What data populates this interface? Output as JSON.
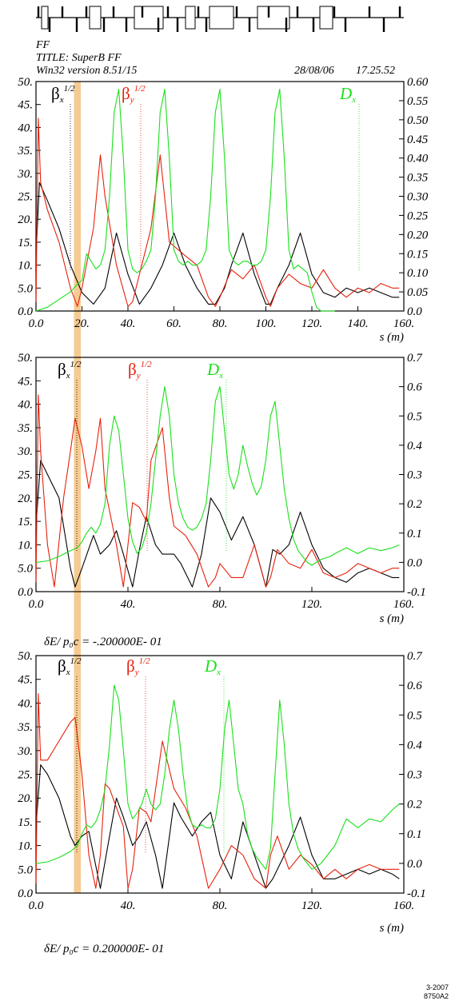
{
  "header": {
    "line1": "FF",
    "line2": "TITLE: SuperB FF",
    "line3": "Win32 version 8.51/15",
    "date": "28/08/06",
    "time": "17.25.52"
  },
  "footer": {
    "code1": "3-2007",
    "code2": "8750A2"
  },
  "colors": {
    "betax": "#000000",
    "betay": "#e8200c",
    "dx": "#19e01a",
    "highlight": "#f5c27f"
  },
  "highlight_band": {
    "s_start": 16.5,
    "s_end": 19.5
  },
  "chart_data": [
    {
      "type": "line",
      "xlabel": "s (m)",
      "xlim": [
        0,
        160
      ],
      "x_ticks": [
        "0.0",
        "20.",
        "40.",
        "60.",
        "80.",
        "100.",
        "120.",
        "140.",
        "160."
      ],
      "ylim_left": [
        0,
        50
      ],
      "y_ticks_left": [
        "0.0",
        "5.0",
        "10.",
        "15.",
        "20.",
        "25.",
        "30.",
        "35.",
        "40.",
        "45.",
        "50."
      ],
      "ylim_right": [
        0,
        0.6
      ],
      "y_ticks_right": [
        "0.0",
        "0.05",
        "0.10",
        "0.15",
        "0.20",
        "0.25",
        "0.30",
        "0.35",
        "0.40",
        "0.45",
        "0.50",
        "0.55",
        "0.60"
      ],
      "delta_label": "",
      "legend": [
        {
          "sym": "β",
          "sub": "x",
          "sup": "1/2",
          "color": "#000000"
        },
        {
          "sym": "β",
          "sub": "y",
          "sup": "1/2",
          "color": "#e8200c"
        },
        {
          "sym": "D",
          "sub": "x",
          "sup": "",
          "color": "#19e01a"
        }
      ],
      "series": [
        {
          "axis": "left",
          "color": "#000000",
          "x": [
            0,
            1.5,
            5,
            10,
            15,
            20,
            25,
            30,
            35,
            40,
            45,
            50,
            55,
            60,
            65,
            70,
            75,
            78,
            82,
            85,
            90,
            95,
            100,
            102,
            105,
            110,
            115,
            120,
            125,
            130,
            135,
            140,
            145,
            150,
            155,
            158
          ],
          "y": [
            12,
            28,
            24,
            18,
            10,
            4,
            1.5,
            5,
            17,
            8,
            1.5,
            5,
            10,
            17,
            10,
            5,
            1.5,
            1.5,
            5,
            10,
            17,
            8,
            1.5,
            1.5,
            5,
            10,
            17,
            8,
            4,
            3,
            5,
            4,
            5,
            4,
            3,
            3
          ]
        },
        {
          "axis": "left",
          "color": "#e8200c",
          "x": [
            0,
            1,
            2,
            5,
            10,
            15,
            18,
            20,
            25,
            28,
            30,
            35,
            40,
            42,
            45,
            50,
            54,
            58,
            65,
            70,
            75,
            78,
            80,
            85,
            90,
            95,
            100,
            102,
            105,
            110,
            115,
            120,
            125,
            130,
            135,
            140,
            145,
            150,
            155,
            158
          ],
          "y": [
            2,
            42,
            28,
            22,
            15,
            5,
            1,
            5,
            18,
            34,
            25,
            10,
            1,
            2,
            8,
            18,
            34,
            15,
            12,
            10,
            3,
            1,
            3,
            9,
            7,
            10,
            3,
            1,
            5,
            8,
            6,
            5,
            9,
            5,
            3,
            5,
            4,
            6,
            5,
            5
          ]
        },
        {
          "axis": "right",
          "color": "#19e01a",
          "x": [
            0,
            5,
            10,
            15,
            18,
            20,
            22,
            24,
            26,
            28,
            30,
            32,
            34,
            36,
            38,
            40,
            42,
            44,
            46,
            48,
            50,
            52,
            54,
            56,
            58,
            60,
            62,
            64,
            66,
            68,
            70,
            72,
            74,
            76,
            78,
            80,
            82,
            84,
            86,
            88,
            90,
            92,
            94,
            96,
            98,
            100,
            102,
            104,
            106,
            108,
            110,
            112,
            114,
            116,
            118,
            120,
            122,
            124,
            126,
            128,
            130
          ],
          "y": [
            0,
            0.01,
            0.03,
            0.05,
            0.07,
            0.08,
            0.15,
            0.13,
            0.11,
            0.12,
            0.16,
            0.3,
            0.52,
            0.58,
            0.4,
            0.16,
            0.11,
            0.1,
            0.11,
            0.13,
            0.16,
            0.3,
            0.52,
            0.58,
            0.4,
            0.16,
            0.13,
            0.12,
            0.13,
            0.12,
            0.12,
            0.13,
            0.16,
            0.3,
            0.52,
            0.58,
            0.4,
            0.16,
            0.13,
            0.12,
            0.13,
            0.13,
            0.12,
            0.12,
            0.13,
            0.16,
            0.3,
            0.52,
            0.58,
            0.4,
            0.16,
            0.11,
            0.12,
            0.11,
            0.1,
            0.05,
            0.01,
            0.0,
            0.0,
            0.0,
            0.0
          ]
        }
      ]
    },
    {
      "type": "line",
      "xlabel": "s (m)",
      "xlim": [
        0,
        160
      ],
      "x_ticks": [
        "0.0",
        "40.",
        "80.",
        "120.",
        "160."
      ],
      "ylim_left": [
        0,
        50
      ],
      "y_ticks_left": [
        "0.0",
        "5.0",
        "10.",
        "15.",
        "20.",
        "25.",
        "30.",
        "35.",
        "40.",
        "45.",
        "50."
      ],
      "ylim_right": [
        -0.1,
        0.7
      ],
      "y_ticks_right": [
        "-0.1",
        "0.0",
        "0.1",
        "0.2",
        "0.3",
        "0.4",
        "0.5",
        "0.6",
        "0.7"
      ],
      "delta_label": "δE/ p₀c  =  -.200000E- 01",
      "legend": [
        {
          "sym": "β",
          "sub": "x",
          "sup": "1/2",
          "color": "#000000"
        },
        {
          "sym": "β",
          "sub": "y",
          "sup": "1/2",
          "color": "#e8200c"
        },
        {
          "sym": "D",
          "sub": "x",
          "sup": "",
          "color": "#19e01a"
        }
      ],
      "series": [
        {
          "axis": "left",
          "color": "#000000",
          "x": [
            0,
            2,
            5,
            10,
            15,
            17,
            20,
            25,
            28,
            32,
            35,
            38,
            42,
            45,
            48,
            52,
            55,
            60,
            63,
            68,
            72,
            76,
            80,
            85,
            90,
            95,
            100,
            103,
            106,
            110,
            115,
            120,
            125,
            130,
            135,
            140,
            145,
            150,
            155,
            158
          ],
          "y": [
            14,
            28,
            25,
            20,
            5,
            1,
            5,
            12,
            8,
            10,
            13,
            8,
            1,
            9,
            16,
            10,
            8,
            8,
            6,
            1,
            8,
            20,
            17,
            11,
            16,
            10,
            1,
            9,
            8,
            10,
            17,
            10,
            5,
            3,
            2,
            4,
            5,
            4,
            3,
            3
          ]
        },
        {
          "axis": "left",
          "color": "#e8200c",
          "x": [
            0,
            1,
            2,
            5,
            8,
            12,
            15,
            17,
            20,
            23,
            26,
            28,
            30,
            35,
            38,
            40,
            42,
            45,
            48,
            50,
            55,
            58,
            60,
            65,
            70,
            75,
            78,
            80,
            85,
            90,
            95,
            100,
            102,
            105,
            110,
            115,
            120,
            125,
            130,
            135,
            140,
            145,
            150,
            155,
            158
          ],
          "y": [
            2,
            42,
            30,
            10,
            1,
            20,
            30,
            37,
            31,
            22,
            30,
            37,
            22,
            10,
            1,
            10,
            19,
            18,
            15,
            28,
            35,
            20,
            14,
            12,
            8,
            1,
            3,
            6,
            3,
            3,
            10,
            1,
            3,
            9,
            6,
            5,
            9,
            4,
            3,
            4,
            6,
            5,
            4,
            5,
            5
          ]
        },
        {
          "axis": "right",
          "color": "#19e01a",
          "x": [
            0,
            5,
            10,
            15,
            18,
            20,
            22,
            24,
            26,
            28,
            30,
            32,
            34,
            36,
            38,
            40,
            42,
            44,
            46,
            48,
            50,
            52,
            54,
            56,
            58,
            60,
            62,
            64,
            66,
            68,
            70,
            72,
            74,
            76,
            78,
            80,
            82,
            84,
            86,
            88,
            90,
            92,
            94,
            96,
            98,
            100,
            102,
            104,
            106,
            108,
            110,
            112,
            114,
            116,
            118,
            120,
            122,
            124,
            126,
            128,
            130,
            135,
            140,
            145,
            150,
            155,
            158
          ],
          "y": [
            0.0,
            0.005,
            0.02,
            0.04,
            0.05,
            0.07,
            0.1,
            0.12,
            0.1,
            0.13,
            0.2,
            0.4,
            0.5,
            0.45,
            0.3,
            0.15,
            0.07,
            0.03,
            0.05,
            0.1,
            0.2,
            0.35,
            0.5,
            0.6,
            0.5,
            0.3,
            0.2,
            0.15,
            0.12,
            0.11,
            0.12,
            0.15,
            0.2,
            0.35,
            0.55,
            0.6,
            0.45,
            0.3,
            0.25,
            0.3,
            0.4,
            0.33,
            0.27,
            0.23,
            0.26,
            0.35,
            0.5,
            0.55,
            0.4,
            0.25,
            0.15,
            0.08,
            0.04,
            0.02,
            0.0,
            -0.01,
            0.0,
            0.01,
            0.015,
            0.02,
            0.03,
            0.05,
            0.03,
            0.05,
            0.04,
            0.05,
            0.06
          ]
        }
      ]
    },
    {
      "type": "line",
      "xlabel": "s (m)",
      "xlim": [
        0,
        160
      ],
      "x_ticks": [
        "0.0",
        "40.",
        "80.",
        "120.",
        "160."
      ],
      "ylim_left": [
        0,
        50
      ],
      "y_ticks_left": [
        "0.0",
        "5.0",
        "10.",
        "15.",
        "20.",
        "25.",
        "30.",
        "35.",
        "40.",
        "45.",
        "50."
      ],
      "ylim_right": [
        -0.1,
        0.7
      ],
      "y_ticks_right": [
        "-0.1",
        "0.0",
        "0.1",
        "0.2",
        "0.3",
        "0.4",
        "0.5",
        "0.6",
        "0.7"
      ],
      "delta_label": "δE/ p₀c  =  0.200000E- 01",
      "legend": [
        {
          "sym": "β",
          "sub": "x",
          "sup": "1/2",
          "color": "#000000"
        },
        {
          "sym": "β",
          "sub": "y",
          "sup": "1/2",
          "color": "#e8200c"
        },
        {
          "sym": "D",
          "sub": "x",
          "sup": "",
          "color": "#19e01a"
        }
      ],
      "series": [
        {
          "axis": "left",
          "color": "#000000",
          "x": [
            0,
            2,
            5,
            10,
            15,
            17,
            20,
            23,
            28,
            32,
            35,
            38,
            42,
            45,
            48,
            52,
            55,
            60,
            63,
            68,
            72,
            76,
            80,
            85,
            90,
            95,
            100,
            103,
            106,
            110,
            115,
            120,
            125,
            130,
            135,
            140,
            145,
            150,
            155,
            158
          ],
          "y": [
            14,
            27,
            25,
            20,
            12,
            10,
            12,
            13,
            1,
            12,
            20,
            16,
            10,
            12,
            15,
            8,
            1,
            19,
            16,
            12,
            15,
            17,
            8,
            3,
            15,
            8,
            1,
            3,
            6,
            10,
            16,
            8,
            3,
            3,
            4,
            5,
            4,
            5,
            4,
            3
          ]
        },
        {
          "axis": "left",
          "color": "#e8200c",
          "x": [
            0,
            1,
            2,
            5,
            10,
            15,
            17,
            20,
            23,
            26,
            28,
            30,
            32,
            35,
            38,
            40,
            42,
            45,
            48,
            50,
            55,
            60,
            65,
            70,
            75,
            80,
            85,
            90,
            95,
            100,
            102,
            105,
            110,
            115,
            120,
            125,
            130,
            135,
            140,
            145,
            150,
            155,
            158
          ],
          "y": [
            2,
            42,
            28,
            28,
            32,
            36,
            37,
            25,
            8,
            1,
            8,
            23,
            22,
            18,
            14,
            1,
            5,
            18,
            17,
            15,
            32,
            22,
            18,
            12,
            1,
            5,
            10,
            8,
            3,
            1,
            8,
            12,
            5,
            8,
            6,
            3,
            5,
            3,
            5,
            6,
            5,
            5,
            5
          ]
        },
        {
          "axis": "right",
          "color": "#19e01a",
          "x": [
            0,
            5,
            10,
            15,
            18,
            20,
            22,
            24,
            26,
            28,
            30,
            32,
            34,
            36,
            38,
            40,
            42,
            44,
            46,
            48,
            50,
            52,
            54,
            56,
            58,
            60,
            62,
            64,
            66,
            68,
            70,
            72,
            74,
            76,
            78,
            80,
            82,
            84,
            86,
            88,
            90,
            92,
            94,
            96,
            98,
            100,
            102,
            104,
            106,
            108,
            110,
            112,
            114,
            116,
            118,
            120,
            122,
            124,
            126,
            128,
            130,
            135,
            140,
            145,
            150,
            155,
            158
          ],
          "y": [
            0.0,
            0.005,
            0.02,
            0.04,
            0.06,
            0.1,
            0.13,
            0.12,
            0.14,
            0.18,
            0.25,
            0.4,
            0.6,
            0.55,
            0.38,
            0.2,
            0.15,
            0.17,
            0.2,
            0.25,
            0.2,
            0.18,
            0.2,
            0.3,
            0.45,
            0.55,
            0.45,
            0.3,
            0.18,
            0.13,
            0.12,
            0.13,
            0.12,
            0.12,
            0.15,
            0.25,
            0.45,
            0.55,
            0.4,
            0.25,
            0.2,
            0.1,
            0.05,
            0.02,
            0.0,
            -0.02,
            0.05,
            0.3,
            0.55,
            0.4,
            0.2,
            0.1,
            0.05,
            0.02,
            0.0,
            -0.02,
            -0.01,
            0.0,
            0.02,
            0.04,
            0.06,
            0.15,
            0.12,
            0.15,
            0.14,
            0.18,
            0.2
          ]
        }
      ]
    }
  ]
}
